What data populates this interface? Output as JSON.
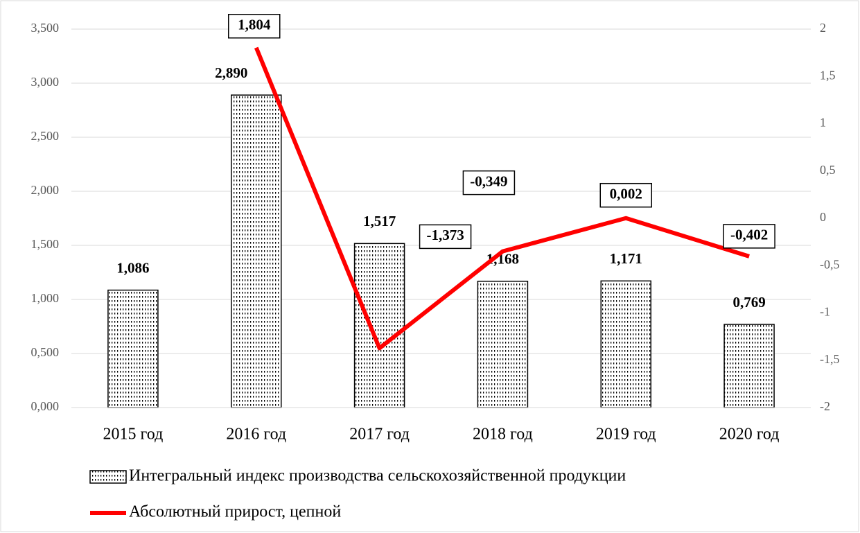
{
  "chart_data": {
    "type": "bar",
    "categories": [
      "2015 год",
      "2016 год",
      "2017 год",
      "2018 год",
      "2019 год",
      "2020 год"
    ],
    "series": [
      {
        "name": "Интегральный индекс производства сельскохозяйственной продукции",
        "type": "bar",
        "color": "#000000",
        "values": [
          1.086,
          2.89,
          1.517,
          1.168,
          1.171,
          0.769
        ],
        "value_labels": [
          "1,086",
          "2,890",
          "1,517",
          "1,168",
          "1,171",
          "0,769"
        ]
      },
      {
        "name": "Абсолютный прирост, цепной",
        "type": "line",
        "axis": "y2",
        "color": "#ff0000",
        "values": [
          null,
          1.804,
          -1.373,
          -0.349,
          0.002,
          -0.402
        ],
        "value_labels": [
          null,
          "1,804",
          "-1,373",
          "-0,349",
          "0,002",
          "-0,402"
        ]
      }
    ],
    "ylim": [
      0,
      3.5
    ],
    "yticks": [
      {
        "value": 0,
        "label": "0,000"
      },
      {
        "value": 0.5,
        "label": "0,500"
      },
      {
        "value": 1,
        "label": "1,000"
      },
      {
        "value": 1.5,
        "label": "1,500"
      },
      {
        "value": 2,
        "label": "2,000"
      },
      {
        "value": 2.5,
        "label": "2,500"
      },
      {
        "value": 3,
        "label": "3,000"
      },
      {
        "value": 3.5,
        "label": "3,500"
      }
    ],
    "y2lim": [
      -2,
      2
    ],
    "y2ticks": [
      -2,
      {
        "value": -1.5,
        "label": "-1,5"
      },
      -1,
      {
        "value": -0.5,
        "label": "-0,5"
      },
      0,
      {
        "value": 0.5,
        "label": "0,5"
      },
      1,
      {
        "value": 1.5,
        "label": "1,5"
      },
      2
    ],
    "grid": true,
    "legend": "bottom"
  }
}
